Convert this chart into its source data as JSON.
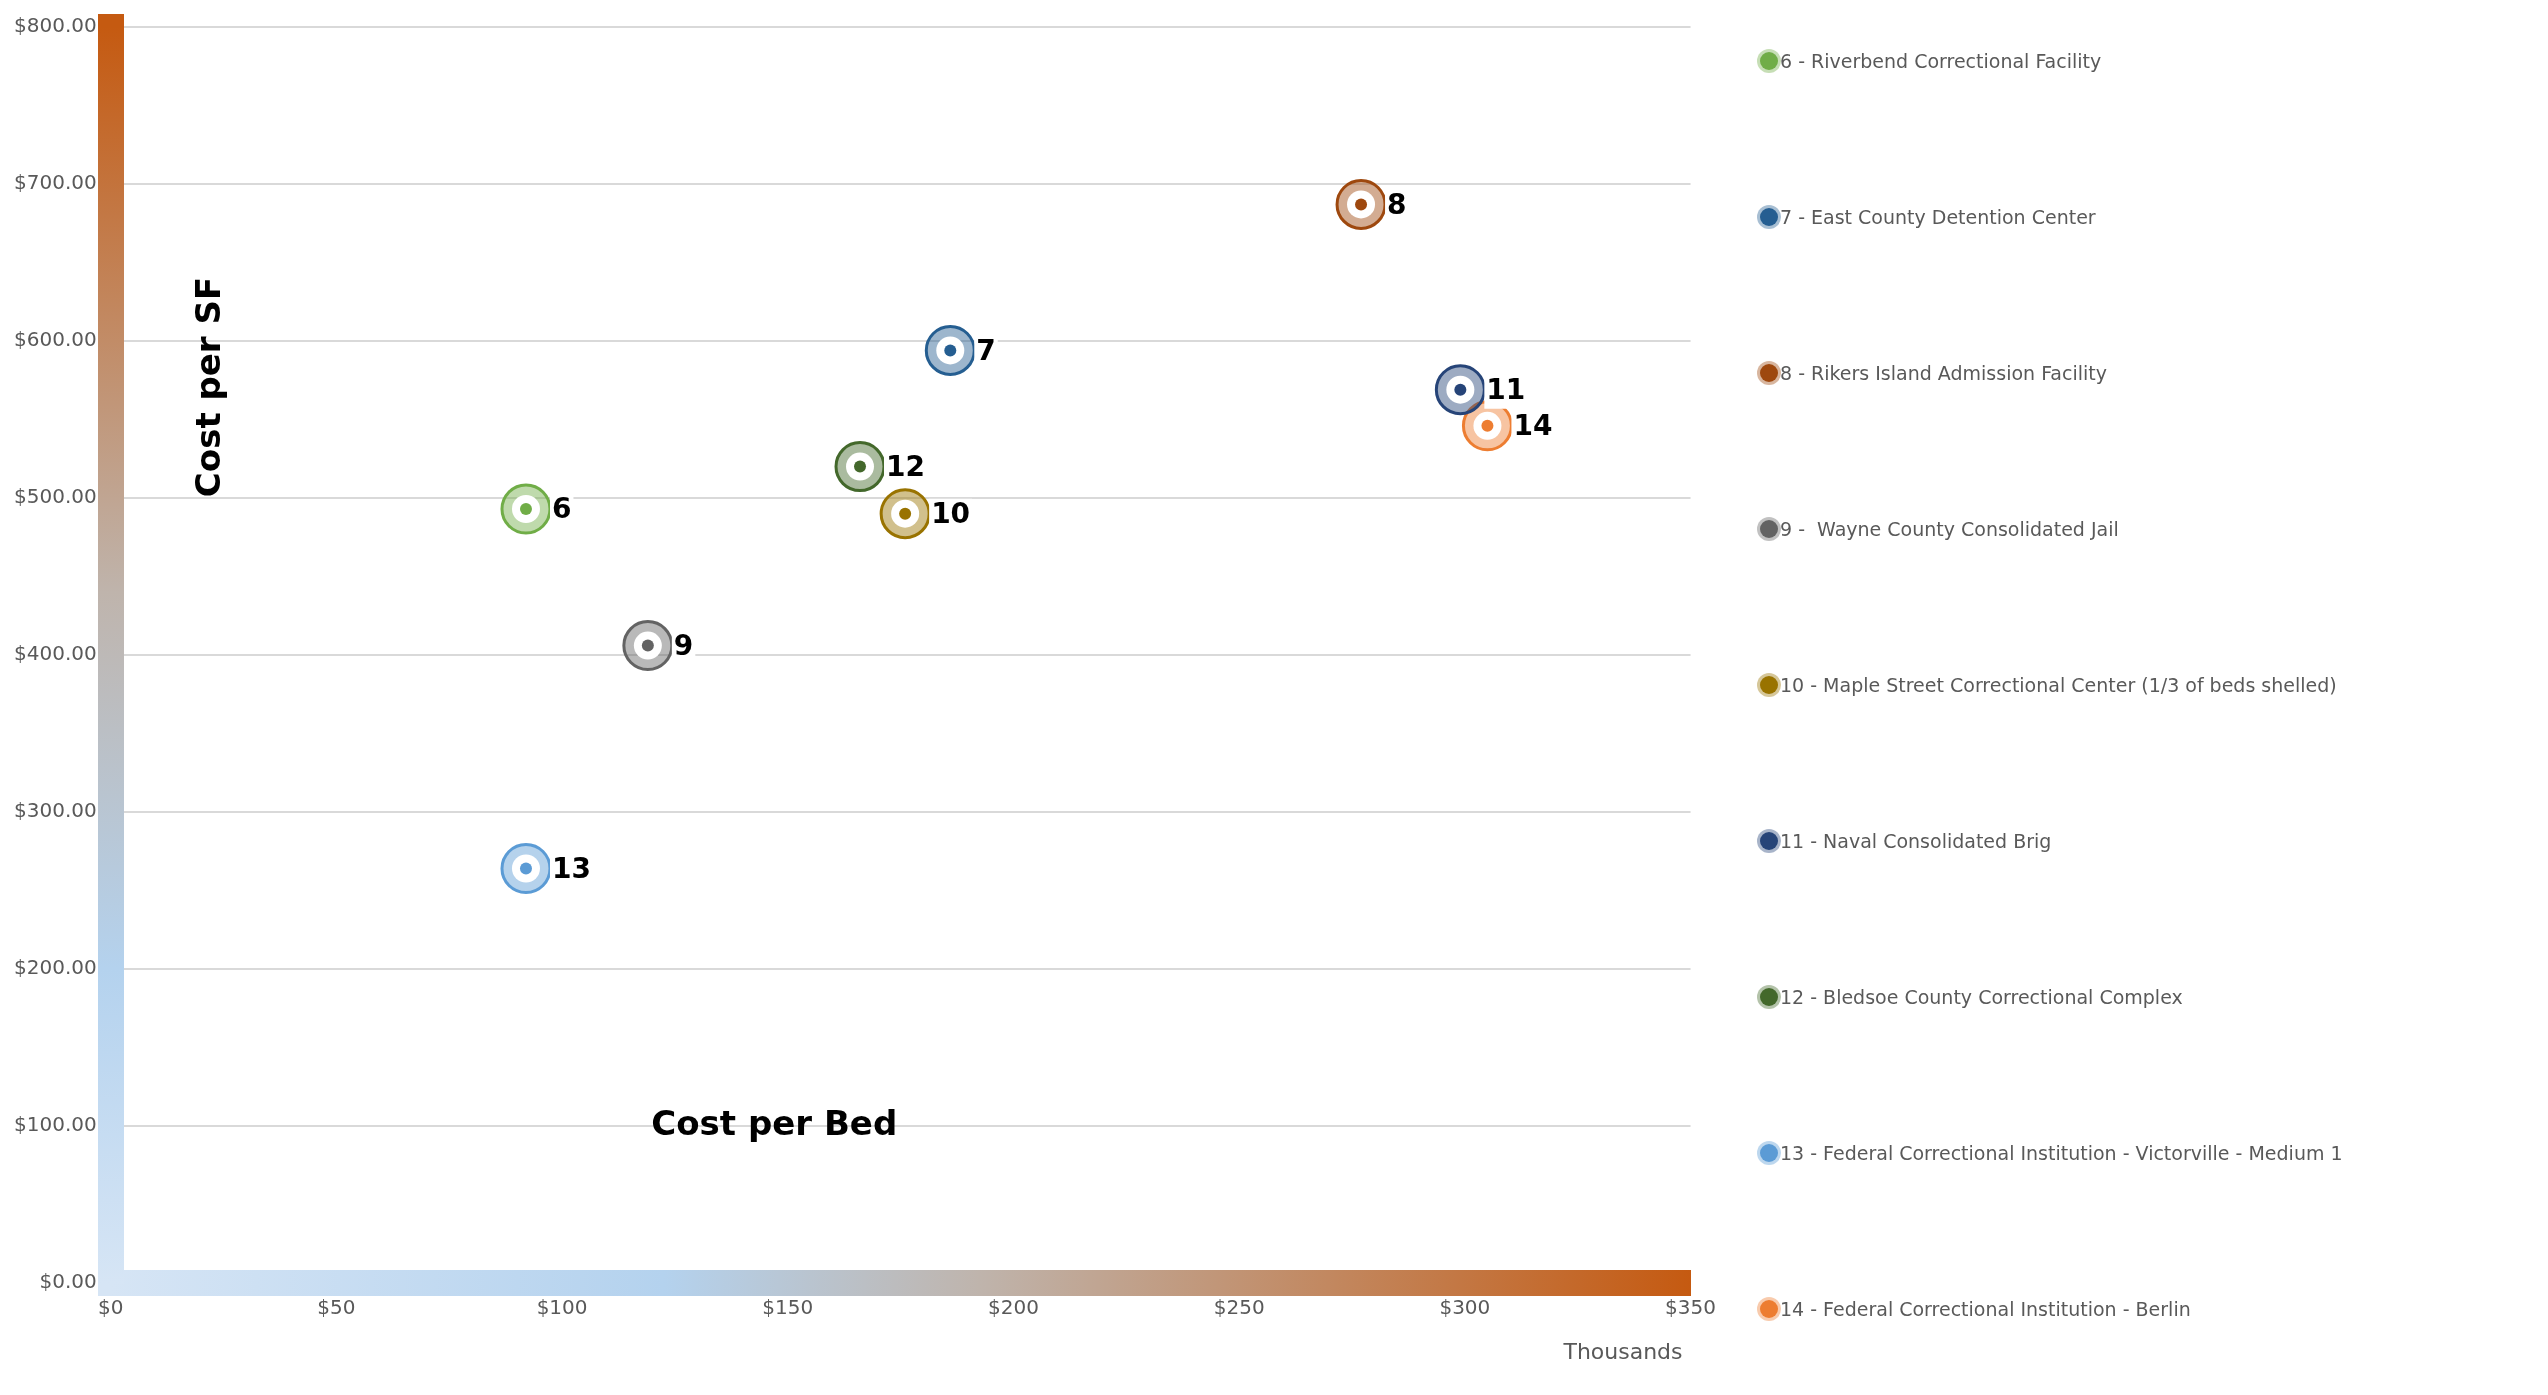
{
  "chart_data": {
    "type": "scatter",
    "xlabel": "Cost per Bed",
    "ylabel": "Cost per SF",
    "annotations": [
      "Thousands",
      {
        "text": "6",
        "x": 92,
        "y": 493
      },
      {
        "text": "7",
        "x": 186,
        "y": 594
      },
      {
        "text": "8",
        "x": 277,
        "y": 687
      },
      {
        "text": "9",
        "x": 119,
        "y": 406
      },
      {
        "text": "10",
        "x": 176,
        "y": 490
      },
      {
        "text": "11",
        "x": 299,
        "y": 569
      },
      {
        "text": "12",
        "x": 166,
        "y": 520
      },
      {
        "text": "13",
        "x": 92,
        "y": 264
      },
      {
        "text": "14",
        "x": 305,
        "y": 546
      }
    ],
    "series": [
      {
        "name": "6 - Riverbend Correctional Facility",
        "color": "#70ad47",
        "x": [
          92
        ],
        "values": [
          493
        ]
      },
      {
        "name": "7 - East County Detention Center",
        "color": "#255e91",
        "x": [
          186
        ],
        "values": [
          594
        ]
      },
      {
        "name": "8 - Rikers Island Admission Facility",
        "color": "#9e480e",
        "x": [
          277
        ],
        "values": [
          687
        ]
      },
      {
        "name": "9 -  Wayne County Consolidated Jail",
        "color": "#636363",
        "x": [
          119
        ],
        "values": [
          406
        ]
      },
      {
        "name": "10 - Maple Street Correctional Center (1/3 of beds shelled)",
        "color": "#997300",
        "x": [
          176
        ],
        "values": [
          490
        ]
      },
      {
        "name": "11 - Naval Consolidated Brig",
        "color": "#264478",
        "x": [
          299
        ],
        "values": [
          569
        ]
      },
      {
        "name": "12 - Bledsoe County Correctional Complex",
        "color": "#43682b",
        "x": [
          166
        ],
        "values": [
          520
        ]
      },
      {
        "name": "13 - Federal Correctional Institution - Victorville - Medium 1",
        "color": "#5b9bd5",
        "x": [
          92
        ],
        "values": [
          264
        ]
      },
      {
        "name": "14 - Federal Correctional Institution - Berlin",
        "color": "#ed7d31",
        "x": [
          305
        ],
        "values": [
          546
        ]
      }
    ],
    "xlim": [
      0,
      350
    ],
    "xticks": [
      {
        "value": 0,
        "label": "$0"
      },
      {
        "value": 50,
        "label": "$50"
      },
      {
        "value": 100,
        "label": "$100"
      },
      {
        "value": 150,
        "label": "$150"
      },
      {
        "value": 200,
        "label": "$200"
      },
      {
        "value": 250,
        "label": "$250"
      },
      {
        "value": 300,
        "label": "$300"
      },
      {
        "value": 350,
        "label": "$350"
      }
    ],
    "ylim": [
      0,
      800
    ],
    "yticks": [
      {
        "value": 0,
        "label": "$0.00"
      },
      {
        "value": 100,
        "label": "$100.00"
      },
      {
        "value": 200,
        "label": "$200.00"
      },
      {
        "value": 300,
        "label": "$300.00"
      },
      {
        "value": 400,
        "label": "$400.00"
      },
      {
        "value": 500,
        "label": "$500.00"
      },
      {
        "value": 600,
        "label": "$600.00"
      },
      {
        "value": 700,
        "label": "$700.00"
      },
      {
        "value": 800,
        "label": "$800.00"
      }
    ],
    "grid": "y",
    "legend": "right",
    "marker": "circle"
  }
}
